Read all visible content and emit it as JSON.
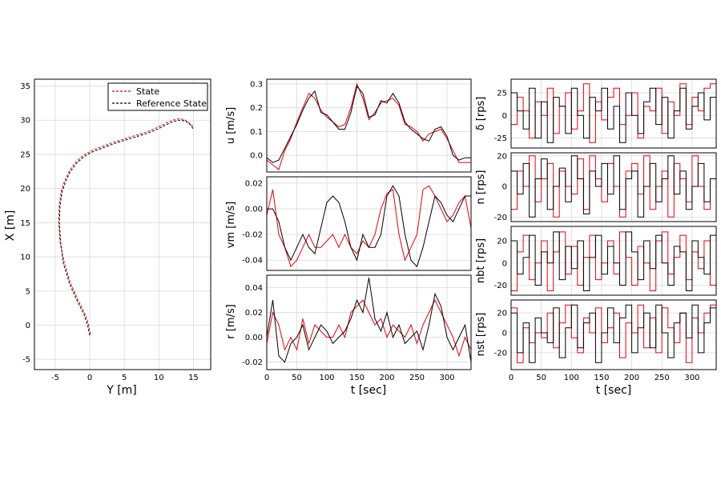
{
  "colors": {
    "state": "#e8000b",
    "reference": "#000000",
    "grid": "#d9d9d9"
  },
  "legend": {
    "state": "State",
    "reference": "Reference State"
  },
  "chart_data": [
    {
      "id": "trajectory",
      "type": "line",
      "title": "",
      "xlabel": "Y [m]",
      "ylabel": "X [m]",
      "xlim": [
        -8,
        17.5
      ],
      "ylim": [
        -6.5,
        36
      ],
      "xticks": [
        -5,
        0,
        5,
        10,
        15
      ],
      "yticks": [
        -5,
        0,
        5,
        10,
        15,
        20,
        25,
        30,
        35
      ],
      "legend_position": "top-right",
      "series": [
        {
          "name": "Reference State",
          "style": "dashed",
          "x": [
            0.0,
            -0.3,
            -0.8,
            -1.8,
            -2.9,
            -3.8,
            -4.2,
            -4.4,
            -4.3,
            -4.0,
            -3.5,
            -2.8,
            -1.9,
            -0.8,
            0.5,
            2.0,
            3.6,
            5.2,
            6.8,
            8.4,
            9.8,
            11.0,
            12.1,
            13.0,
            13.8,
            14.5,
            15.0
          ],
          "y": [
            -1.5,
            0.0,
            1.5,
            3.5,
            6.0,
            9.0,
            12.0,
            15.0,
            17.5,
            19.5,
            21.0,
            22.5,
            23.7,
            24.7,
            25.4,
            26.0,
            26.6,
            27.1,
            27.6,
            28.1,
            28.7,
            29.3,
            29.8,
            30.0,
            29.9,
            29.4,
            28.7
          ]
        },
        {
          "name": "State",
          "style": "dashed",
          "x": [
            0.1,
            -0.2,
            -0.7,
            -1.7,
            -2.8,
            -3.7,
            -4.3,
            -4.5,
            -4.4,
            -4.1,
            -3.6,
            -2.9,
            -2.0,
            -0.9,
            0.4,
            1.9,
            3.5,
            5.1,
            6.7,
            8.3,
            9.7,
            10.9,
            12.0,
            12.9,
            13.7,
            14.4,
            15.1
          ],
          "y": [
            -1.3,
            0.2,
            1.7,
            3.7,
            6.2,
            9.2,
            12.2,
            15.2,
            17.7,
            19.7,
            21.2,
            22.7,
            23.9,
            24.9,
            25.6,
            26.2,
            26.8,
            27.3,
            27.8,
            28.3,
            28.9,
            29.5,
            30.0,
            30.2,
            30.1,
            29.6,
            28.9
          ]
        }
      ]
    },
    {
      "id": "u",
      "type": "line",
      "xlabel": "",
      "ylabel": "u [m/s]",
      "xlim": [
        0,
        340
      ],
      "ylim": [
        -0.07,
        0.32
      ],
      "xticks": [
        0,
        50,
        100,
        150,
        200,
        250,
        300
      ],
      "yticks": [
        0.0,
        0.1,
        0.2,
        0.3
      ],
      "x": [
        0,
        10,
        20,
        30,
        40,
        50,
        60,
        70,
        80,
        90,
        100,
        110,
        120,
        130,
        140,
        150,
        160,
        170,
        180,
        190,
        200,
        210,
        220,
        230,
        240,
        250,
        260,
        270,
        280,
        290,
        300,
        310,
        320,
        330,
        340
      ],
      "series": [
        {
          "name": "Reference State",
          "values": [
            -0.01,
            -0.03,
            -0.02,
            0.03,
            0.08,
            0.13,
            0.19,
            0.24,
            0.27,
            0.18,
            0.17,
            0.14,
            0.11,
            0.11,
            0.18,
            0.29,
            0.26,
            0.16,
            0.17,
            0.23,
            0.22,
            0.26,
            0.22,
            0.14,
            0.11,
            0.09,
            0.07,
            0.06,
            0.11,
            0.12,
            0.08,
            0.0,
            -0.02,
            -0.01,
            -0.01
          ]
        },
        {
          "name": "State",
          "values": [
            -0.02,
            -0.04,
            -0.06,
            0.02,
            0.07,
            0.14,
            0.2,
            0.26,
            0.24,
            0.19,
            0.16,
            0.14,
            0.12,
            0.13,
            0.2,
            0.3,
            0.24,
            0.15,
            0.18,
            0.22,
            0.23,
            0.24,
            0.21,
            0.13,
            0.12,
            0.1,
            0.06,
            0.09,
            0.1,
            0.11,
            0.07,
            0.02,
            -0.03,
            -0.03,
            -0.03
          ]
        }
      ]
    },
    {
      "id": "vm",
      "type": "line",
      "xlabel": "",
      "ylabel": "vm [m/s]",
      "xlim": [
        0,
        340
      ],
      "ylim": [
        -0.048,
        0.025
      ],
      "xticks": [
        0,
        50,
        100,
        150,
        200,
        250,
        300
      ],
      "yticks": [
        -0.04,
        -0.02,
        0.0,
        0.02
      ],
      "x": [
        0,
        10,
        20,
        30,
        40,
        50,
        60,
        70,
        80,
        90,
        100,
        110,
        120,
        130,
        140,
        150,
        160,
        170,
        180,
        190,
        200,
        210,
        220,
        230,
        240,
        250,
        260,
        270,
        280,
        290,
        300,
        310,
        320,
        330,
        340
      ],
      "series": [
        {
          "name": "Reference State",
          "values": [
            0.0,
            0.0,
            -0.01,
            -0.03,
            -0.04,
            -0.03,
            -0.02,
            -0.03,
            -0.035,
            -0.015,
            0.005,
            0.01,
            0.005,
            -0.01,
            -0.03,
            -0.04,
            -0.02,
            -0.03,
            -0.03,
            -0.02,
            0.01,
            0.018,
            0.01,
            -0.02,
            -0.04,
            -0.045,
            -0.03,
            -0.01,
            0.01,
            0.005,
            -0.005,
            -0.01,
            0.0,
            0.01,
            0.01
          ]
        },
        {
          "name": "State",
          "values": [
            -0.005,
            0.015,
            -0.02,
            -0.03,
            -0.045,
            -0.04,
            -0.03,
            -0.02,
            -0.03,
            -0.03,
            -0.025,
            -0.02,
            -0.03,
            -0.02,
            -0.03,
            -0.035,
            -0.025,
            -0.03,
            -0.02,
            0.0,
            0.012,
            0.015,
            -0.02,
            -0.04,
            -0.03,
            -0.02,
            0.015,
            0.018,
            0.01,
            0.0,
            -0.01,
            -0.005,
            0.005,
            0.01,
            -0.015
          ]
        }
      ]
    },
    {
      "id": "r",
      "type": "line",
      "xlabel": "t [sec]",
      "ylabel": "r [m/s]",
      "xlim": [
        0,
        340
      ],
      "ylim": [
        -0.026,
        0.05
      ],
      "xticks": [
        0,
        50,
        100,
        150,
        200,
        250,
        300
      ],
      "yticks": [
        -0.02,
        0.0,
        0.02,
        0.04
      ],
      "x": [
        0,
        10,
        20,
        30,
        40,
        50,
        60,
        70,
        80,
        90,
        100,
        110,
        120,
        130,
        140,
        150,
        160,
        170,
        180,
        190,
        200,
        210,
        220,
        230,
        240,
        250,
        260,
        270,
        280,
        290,
        300,
        310,
        320,
        330,
        340
      ],
      "series": [
        {
          "name": "Reference State",
          "values": [
            0.0,
            0.03,
            -0.015,
            -0.02,
            -0.005,
            0.0,
            0.01,
            -0.01,
            0.0,
            0.01,
            0.005,
            -0.005,
            0.0,
            0.005,
            0.015,
            0.03,
            0.02,
            0.048,
            0.015,
            0.005,
            0.02,
            0.0,
            0.01,
            -0.005,
            0.0,
            0.005,
            -0.01,
            0.01,
            0.035,
            0.025,
            0.0,
            -0.01,
            0.0,
            0.01,
            -0.02
          ]
        },
        {
          "name": "State",
          "values": [
            -0.005,
            0.02,
            0.01,
            -0.01,
            0.0,
            -0.01,
            0.015,
            -0.005,
            0.01,
            0.005,
            0.0,
            0.0,
            0.01,
            0.0,
            0.02,
            0.025,
            0.03,
            0.02,
            0.01,
            0.015,
            0.0,
            0.01,
            0.005,
            0.0,
            0.01,
            -0.005,
            0.01,
            0.02,
            0.03,
            0.02,
            0.01,
            0.0,
            -0.015,
            0.0,
            -0.01
          ]
        }
      ]
    },
    {
      "id": "delta",
      "type": "line",
      "step": true,
      "xlabel": "",
      "ylabel": "δ [rps]",
      "xlim": [
        0,
        340
      ],
      "ylim": [
        -36,
        40
      ],
      "xticks": [
        0,
        50,
        100,
        150,
        200,
        250,
        300
      ],
      "yticks": [
        -25,
        0,
        25
      ],
      "x": [
        0,
        10,
        20,
        30,
        40,
        50,
        60,
        70,
        80,
        90,
        100,
        110,
        120,
        130,
        140,
        150,
        160,
        170,
        180,
        190,
        200,
        210,
        220,
        230,
        240,
        250,
        260,
        270,
        280,
        290,
        300,
        310,
        320,
        330
      ],
      "series": [
        {
          "name": "Reference State",
          "values": [
            25,
            5,
            -15,
            30,
            -25,
            15,
            -30,
            20,
            10,
            -20,
            30,
            0,
            -25,
            20,
            5,
            30,
            -15,
            10,
            -30,
            25,
            0,
            -20,
            15,
            30,
            -10,
            20,
            -25,
            5,
            30,
            -15,
            10,
            25,
            -5,
            20
          ]
        },
        {
          "name": "State",
          "values": [
            -10,
            20,
            5,
            -25,
            15,
            0,
            30,
            -20,
            10,
            25,
            -15,
            5,
            35,
            -30,
            15,
            -5,
            20,
            30,
            -10,
            0,
            25,
            -25,
            10,
            5,
            30,
            -20,
            15,
            0,
            35,
            -10,
            20,
            5,
            30,
            35
          ]
        }
      ]
    },
    {
      "id": "n",
      "type": "line",
      "step": true,
      "xlabel": "",
      "ylabel": "n [rps]",
      "xlim": [
        0,
        340
      ],
      "ylim": [
        -23,
        22
      ],
      "xticks": [
        0,
        50,
        100,
        150,
        200,
        250,
        300
      ],
      "yticks": [
        -20,
        0,
        20
      ],
      "x": [
        0,
        10,
        20,
        30,
        40,
        50,
        60,
        70,
        80,
        90,
        100,
        110,
        120,
        130,
        140,
        150,
        160,
        170,
        180,
        190,
        200,
        210,
        220,
        230,
        240,
        250,
        260,
        270,
        280,
        290,
        300,
        310,
        320,
        330
      ],
      "series": [
        {
          "name": "Reference State",
          "values": [
            10,
            -5,
            15,
            -20,
            5,
            18,
            -15,
            0,
            12,
            -10,
            20,
            5,
            -18,
            10,
            0,
            15,
            -5,
            20,
            -15,
            5,
            10,
            -20,
            0,
            15,
            -10,
            5,
            20,
            -5,
            10,
            -15,
            0,
            15,
            -10,
            5
          ]
        },
        {
          "name": "State",
          "values": [
            -15,
            10,
            0,
            20,
            -10,
            5,
            15,
            -20,
            10,
            0,
            -5,
            18,
            -15,
            20,
            5,
            -10,
            15,
            0,
            -20,
            10,
            15,
            -5,
            20,
            -15,
            0,
            10,
            -20,
            15,
            5,
            -10,
            20,
            0,
            -15,
            5
          ]
        }
      ]
    },
    {
      "id": "nbt",
      "type": "line",
      "step": true,
      "xlabel": "",
      "ylabel": "nbt [rps]",
      "xlim": [
        0,
        340
      ],
      "ylim": [
        -29,
        33
      ],
      "xticks": [
        0,
        50,
        100,
        150,
        200,
        250,
        300
      ],
      "yticks": [
        -20,
        0,
        20
      ],
      "x": [
        0,
        10,
        20,
        30,
        40,
        50,
        60,
        70,
        80,
        90,
        100,
        110,
        120,
        130,
        140,
        150,
        160,
        170,
        180,
        190,
        200,
        210,
        220,
        230,
        240,
        250,
        260,
        270,
        280,
        290,
        300,
        310,
        320,
        330
      ],
      "series": [
        {
          "name": "Reference State",
          "values": [
            20,
            -10,
            5,
            25,
            -20,
            10,
            0,
            28,
            -15,
            15,
            -5,
            20,
            -25,
            5,
            25,
            -10,
            15,
            0,
            -20,
            28,
            10,
            -15,
            20,
            -5,
            25,
            0,
            -20,
            15,
            10,
            -25,
            20,
            5,
            -10,
            25
          ]
        },
        {
          "name": "State",
          "values": [
            -25,
            10,
            25,
            -15,
            0,
            20,
            -25,
            10,
            28,
            -10,
            15,
            -20,
            5,
            25,
            -15,
            0,
            20,
            -10,
            28,
            5,
            -20,
            15,
            0,
            -25,
            20,
            28,
            -10,
            5,
            25,
            -15,
            10,
            -5,
            20,
            -20
          ]
        }
      ]
    },
    {
      "id": "nst",
      "type": "line",
      "step": true,
      "xlabel": "t [sec]",
      "ylabel": "nst [rps]",
      "xlim": [
        0,
        340
      ],
      "ylim": [
        -37,
        33
      ],
      "xticks": [
        0,
        50,
        100,
        150,
        200,
        250,
        300
      ],
      "yticks": [
        -20,
        0,
        20
      ],
      "x": [
        0,
        10,
        20,
        30,
        40,
        50,
        60,
        70,
        80,
        90,
        100,
        110,
        120,
        130,
        140,
        150,
        160,
        170,
        180,
        190,
        200,
        210,
        220,
        230,
        240,
        250,
        260,
        270,
        280,
        290,
        300,
        310,
        320,
        330
      ],
      "series": [
        {
          "name": "Reference State",
          "values": [
            20,
            -20,
            10,
            -30,
            15,
            0,
            -10,
            25,
            -25,
            5,
            28,
            -15,
            10,
            20,
            -30,
            0,
            25,
            -10,
            15,
            28,
            -20,
            5,
            20,
            -15,
            28,
            0,
            -25,
            10,
            20,
            -5,
            28,
            -20,
            10,
            25
          ]
        },
        {
          "name": "State",
          "values": [
            25,
            -30,
            5,
            -10,
            0,
            -5,
            20,
            -15,
            10,
            28,
            -5,
            -20,
            15,
            0,
            25,
            -10,
            5,
            20,
            -25,
            10,
            0,
            28,
            -15,
            15,
            -20,
            25,
            5,
            -10,
            20,
            -30,
            15,
            0,
            20,
            28
          ]
        }
      ]
    }
  ],
  "texts": {
    "traj_xlabel": "Y [m]",
    "traj_ylabel": "X [m]",
    "u_ylabel": "u [m/s]",
    "vm_ylabel": "vm [m/s]",
    "r_ylabel": "r [m/s]",
    "mid_xlabel": "t [sec]",
    "delta_ylabel": "δ [rps]",
    "n_ylabel": "n [rps]",
    "nbt_ylabel": "nbt [rps]",
    "nst_ylabel": "nst [rps]",
    "right_xlabel": "t [sec]"
  }
}
